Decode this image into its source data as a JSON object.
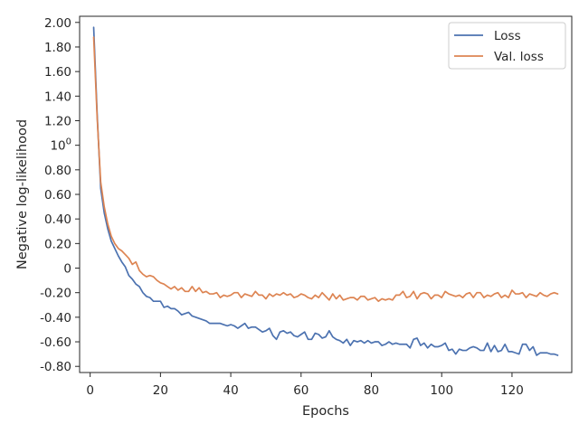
{
  "chart_data": {
    "type": "line",
    "title": "",
    "xlabel": "Epochs",
    "ylabel": "Negative log-likelihood",
    "xlim": [
      -3,
      137
    ],
    "ylim": [
      -0.85,
      2.05
    ],
    "x_ticks": [
      {
        "value": 0,
        "label": "0"
      },
      {
        "value": 20,
        "label": "20"
      },
      {
        "value": 40,
        "label": "40"
      },
      {
        "value": 60,
        "label": "60"
      },
      {
        "value": 80,
        "label": "80"
      },
      {
        "value": 100,
        "label": "100"
      },
      {
        "value": 120,
        "label": "120"
      }
    ],
    "y_ticks": [
      {
        "value": 2.0,
        "label": "2.00"
      },
      {
        "value": 1.8,
        "label": "1.80"
      },
      {
        "value": 1.6,
        "label": "1.60"
      },
      {
        "value": 1.4,
        "label": "1.40"
      },
      {
        "value": 1.2,
        "label": "1.20"
      },
      {
        "value": 1.0,
        "label": "10",
        "sup": "0"
      },
      {
        "value": 0.8,
        "label": "0.80"
      },
      {
        "value": 0.6,
        "label": "0.60"
      },
      {
        "value": 0.4,
        "label": "0.40"
      },
      {
        "value": 0.2,
        "label": "0.20"
      },
      {
        "value": 0.0,
        "label": "0"
      },
      {
        "value": -0.2,
        "label": "-0.20"
      },
      {
        "value": -0.4,
        "label": "-0.40"
      },
      {
        "value": -0.6,
        "label": "-0.60"
      },
      {
        "value": -0.8,
        "label": "-0.80"
      }
    ],
    "grid": false,
    "legend_position": "top-right",
    "x": [
      1,
      2,
      3,
      4,
      5,
      6,
      7,
      8,
      9,
      10,
      11,
      12,
      13,
      14,
      15,
      16,
      17,
      18,
      19,
      20,
      21,
      22,
      23,
      24,
      25,
      26,
      27,
      28,
      29,
      30,
      31,
      32,
      33,
      34,
      35,
      36,
      37,
      38,
      39,
      40,
      41,
      42,
      43,
      44,
      45,
      46,
      47,
      48,
      49,
      50,
      51,
      52,
      53,
      54,
      55,
      56,
      57,
      58,
      59,
      60,
      61,
      62,
      63,
      64,
      65,
      66,
      67,
      68,
      69,
      70,
      71,
      72,
      73,
      74,
      75,
      76,
      77,
      78,
      79,
      80,
      81,
      82,
      83,
      84,
      85,
      86,
      87,
      88,
      89,
      90,
      91,
      92,
      93,
      94,
      95,
      96,
      97,
      98,
      99,
      100,
      101,
      102,
      103,
      104,
      105,
      106,
      107,
      108,
      109,
      110,
      111,
      112,
      113,
      114,
      115,
      116,
      117,
      118,
      119,
      120,
      121,
      122,
      123,
      124,
      125,
      126,
      127,
      128,
      129,
      130,
      131,
      132,
      133
    ],
    "series": [
      {
        "name": "Loss",
        "color": "#4c72b0",
        "values": [
          1.96,
          1.25,
          0.65,
          0.45,
          0.32,
          0.22,
          0.16,
          0.1,
          0.05,
          0.01,
          -0.06,
          -0.09,
          -0.13,
          -0.15,
          -0.2,
          -0.23,
          -0.24,
          -0.27,
          -0.27,
          -0.27,
          -0.32,
          -0.31,
          -0.33,
          -0.33,
          -0.35,
          -0.38,
          -0.37,
          -0.36,
          -0.39,
          -0.4,
          -0.41,
          -0.42,
          -0.43,
          -0.45,
          -0.45,
          -0.45,
          -0.45,
          -0.46,
          -0.47,
          -0.46,
          -0.47,
          -0.49,
          -0.47,
          -0.45,
          -0.49,
          -0.48,
          -0.48,
          -0.5,
          -0.52,
          -0.51,
          -0.49,
          -0.55,
          -0.58,
          -0.52,
          -0.51,
          -0.53,
          -0.52,
          -0.55,
          -0.56,
          -0.54,
          -0.52,
          -0.58,
          -0.58,
          -0.53,
          -0.54,
          -0.57,
          -0.56,
          -0.51,
          -0.56,
          -0.58,
          -0.59,
          -0.61,
          -0.58,
          -0.63,
          -0.59,
          -0.6,
          -0.59,
          -0.61,
          -0.59,
          -0.61,
          -0.6,
          -0.6,
          -0.63,
          -0.62,
          -0.6,
          -0.62,
          -0.61,
          -0.62,
          -0.62,
          -0.62,
          -0.65,
          -0.58,
          -0.57,
          -0.63,
          -0.61,
          -0.65,
          -0.62,
          -0.64,
          -0.64,
          -0.63,
          -0.61,
          -0.67,
          -0.66,
          -0.7,
          -0.66,
          -0.67,
          -0.67,
          -0.65,
          -0.64,
          -0.65,
          -0.67,
          -0.67,
          -0.61,
          -0.68,
          -0.63,
          -0.68,
          -0.67,
          -0.62,
          -0.68,
          -0.68,
          -0.69,
          -0.7,
          -0.62,
          -0.62,
          -0.67,
          -0.64,
          -0.71,
          -0.69,
          -0.69,
          -0.69,
          -0.7,
          -0.7,
          -0.71
        ]
      },
      {
        "name": "Val. loss",
        "color": "#dd8452",
        "values": [
          1.88,
          1.22,
          0.7,
          0.5,
          0.36,
          0.26,
          0.2,
          0.16,
          0.14,
          0.11,
          0.08,
          0.03,
          0.05,
          -0.02,
          -0.05,
          -0.07,
          -0.06,
          -0.07,
          -0.1,
          -0.12,
          -0.13,
          -0.15,
          -0.17,
          -0.15,
          -0.18,
          -0.16,
          -0.19,
          -0.19,
          -0.15,
          -0.19,
          -0.16,
          -0.2,
          -0.19,
          -0.21,
          -0.21,
          -0.2,
          -0.24,
          -0.22,
          -0.23,
          -0.22,
          -0.2,
          -0.2,
          -0.24,
          -0.21,
          -0.22,
          -0.23,
          -0.19,
          -0.22,
          -0.22,
          -0.25,
          -0.21,
          -0.23,
          -0.21,
          -0.22,
          -0.2,
          -0.22,
          -0.21,
          -0.24,
          -0.23,
          -0.21,
          -0.22,
          -0.24,
          -0.25,
          -0.22,
          -0.24,
          -0.2,
          -0.23,
          -0.26,
          -0.21,
          -0.25,
          -0.22,
          -0.26,
          -0.25,
          -0.24,
          -0.24,
          -0.26,
          -0.23,
          -0.23,
          -0.26,
          -0.25,
          -0.24,
          -0.27,
          -0.25,
          -0.26,
          -0.25,
          -0.26,
          -0.22,
          -0.22,
          -0.19,
          -0.24,
          -0.23,
          -0.19,
          -0.25,
          -0.21,
          -0.2,
          -0.21,
          -0.25,
          -0.22,
          -0.22,
          -0.24,
          -0.19,
          -0.21,
          -0.22,
          -0.23,
          -0.22,
          -0.24,
          -0.21,
          -0.2,
          -0.24,
          -0.2,
          -0.2,
          -0.24,
          -0.22,
          -0.23,
          -0.21,
          -0.2,
          -0.24,
          -0.22,
          -0.24,
          -0.18,
          -0.21,
          -0.21,
          -0.2,
          -0.24,
          -0.21,
          -0.22,
          -0.23,
          -0.2,
          -0.22,
          -0.23,
          -0.21,
          -0.2,
          -0.21
        ]
      }
    ]
  }
}
